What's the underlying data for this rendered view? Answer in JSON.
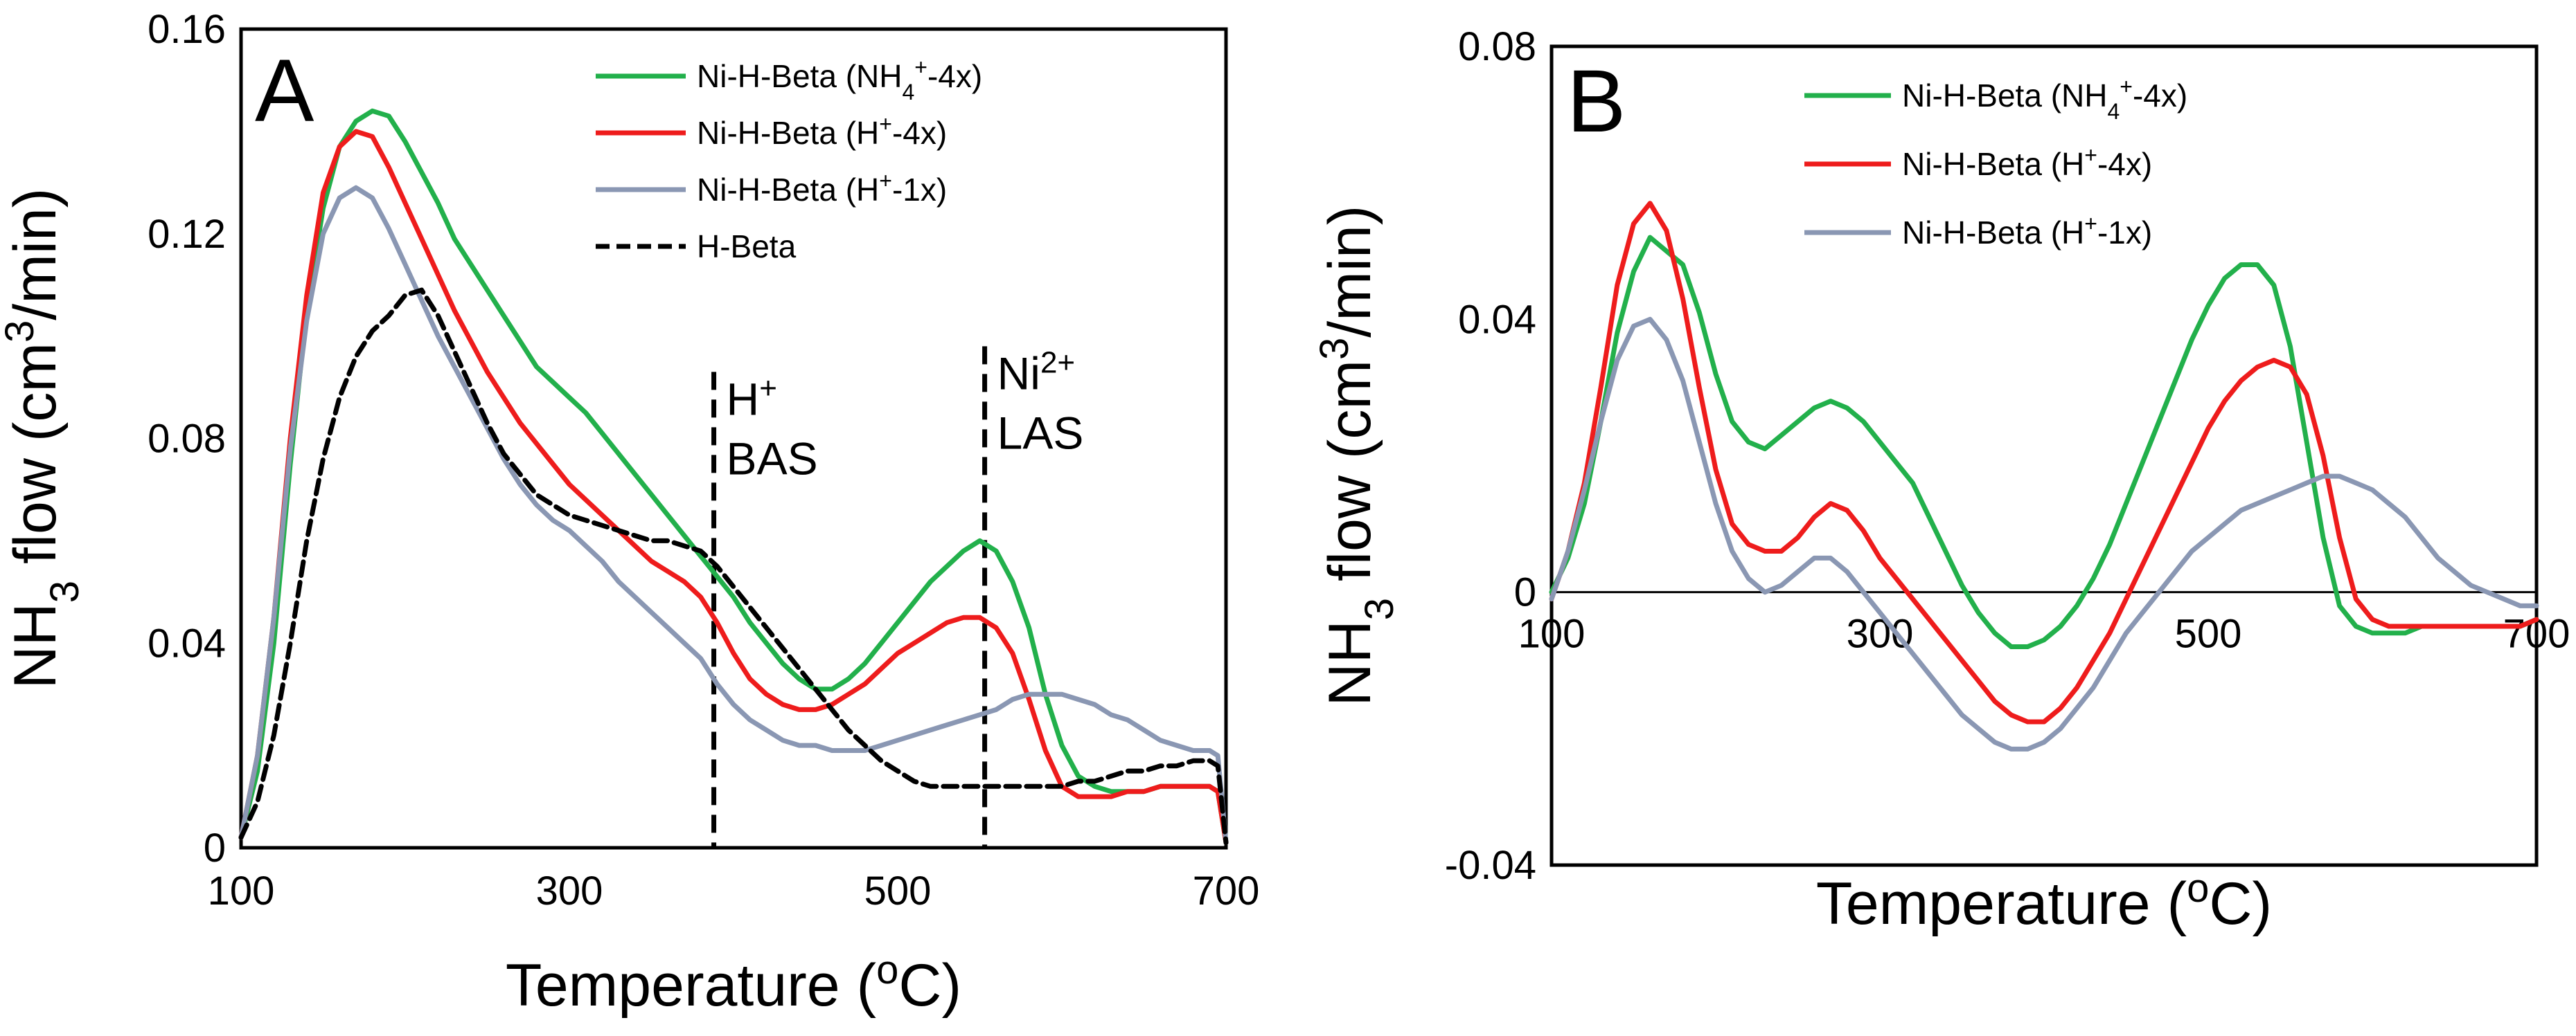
{
  "chart_data": [
    {
      "panel": "A",
      "type": "line",
      "xlabel": "Temperature (oC)",
      "xlabel_main": "Temperature (",
      "xlabel_sup": "o",
      "xlabel_tail": "C)",
      "ylabel": "NH3 flow (cm3/min)",
      "ylabel_parts": [
        "NH",
        "3",
        " flow (cm",
        "3",
        "/min)"
      ],
      "xlim": [
        100,
        700
      ],
      "ylim": [
        0,
        0.16
      ],
      "xticks": [
        "100",
        "300",
        "500",
        "700"
      ],
      "xtick_values": [
        100,
        300,
        500,
        700
      ],
      "yticks": [
        "0",
        "0.04",
        "0.08",
        "0.12",
        "0.16"
      ],
      "ytick_values": [
        0,
        0.04,
        0.08,
        0.12,
        0.16
      ],
      "legend_position": "top-right",
      "grid": false,
      "annotations": [
        {
          "line1": "H",
          "line1_sup": "+",
          "line2": "BAS",
          "x": 388,
          "y_top": 0.093
        },
        {
          "line1": "Ni",
          "line1_sup": "2+",
          "line2": "LAS",
          "x": 553,
          "y_top": 0.098
        }
      ],
      "series": [
        {
          "name": "Ni-H-Beta (NH4+-4x)",
          "label_main": "Ni-H-Beta (NH",
          "label_sub": "4",
          "label_sup": "+",
          "label_tail": "-4x)",
          "color": "#22b04b",
          "dashed": false,
          "x": [
            100,
            110,
            120,
            130,
            140,
            150,
            160,
            170,
            180,
            190,
            200,
            210,
            220,
            230,
            240,
            250,
            260,
            270,
            280,
            290,
            300,
            310,
            320,
            330,
            340,
            350,
            360,
            370,
            380,
            390,
            400,
            410,
            420,
            430,
            440,
            450,
            460,
            470,
            480,
            490,
            500,
            510,
            520,
            530,
            540,
            550,
            560,
            570,
            580,
            590,
            600,
            610,
            620,
            630,
            640,
            650,
            660,
            670,
            680,
            690,
            695,
            700
          ],
          "y": [
            0.002,
            0.015,
            0.04,
            0.075,
            0.105,
            0.125,
            0.137,
            0.142,
            0.144,
            0.143,
            0.138,
            0.132,
            0.126,
            0.119,
            0.114,
            0.109,
            0.104,
            0.099,
            0.094,
            0.091,
            0.088,
            0.085,
            0.081,
            0.077,
            0.073,
            0.069,
            0.065,
            0.061,
            0.057,
            0.053,
            0.049,
            0.044,
            0.04,
            0.036,
            0.033,
            0.031,
            0.031,
            0.033,
            0.036,
            0.04,
            0.044,
            0.048,
            0.052,
            0.055,
            0.058,
            0.06,
            0.058,
            0.052,
            0.043,
            0.03,
            0.02,
            0.014,
            0.012,
            0.011,
            0.011,
            0.011,
            0.012,
            0.012,
            0.012,
            0.012,
            0.011,
            0.001
          ]
        },
        {
          "name": "Ni-H-Beta (H+-4x)",
          "label_main": "Ni-H-Beta (H",
          "label_sub": "",
          "label_sup": "+",
          "label_tail": "-4x)",
          "color": "#ee1c1c",
          "dashed": false,
          "x": [
            100,
            110,
            120,
            130,
            140,
            150,
            160,
            170,
            180,
            190,
            200,
            210,
            220,
            230,
            240,
            250,
            260,
            270,
            280,
            290,
            300,
            310,
            320,
            330,
            340,
            350,
            360,
            370,
            380,
            390,
            400,
            410,
            420,
            430,
            440,
            450,
            460,
            470,
            480,
            490,
            500,
            510,
            520,
            530,
            540,
            550,
            560,
            570,
            580,
            590,
            600,
            610,
            620,
            630,
            640,
            650,
            660,
            670,
            680,
            690,
            695,
            700
          ],
          "y": [
            0.002,
            0.018,
            0.045,
            0.08,
            0.108,
            0.128,
            0.137,
            0.14,
            0.139,
            0.133,
            0.126,
            0.119,
            0.112,
            0.105,
            0.099,
            0.093,
            0.088,
            0.083,
            0.079,
            0.075,
            0.071,
            0.068,
            0.065,
            0.062,
            0.059,
            0.056,
            0.054,
            0.052,
            0.049,
            0.044,
            0.038,
            0.033,
            0.03,
            0.028,
            0.027,
            0.027,
            0.028,
            0.03,
            0.032,
            0.035,
            0.038,
            0.04,
            0.042,
            0.044,
            0.045,
            0.045,
            0.043,
            0.038,
            0.029,
            0.019,
            0.012,
            0.01,
            0.01,
            0.01,
            0.011,
            0.011,
            0.012,
            0.012,
            0.012,
            0.012,
            0.011,
            0.001
          ]
        },
        {
          "name": "Ni-H-Beta (H+-1x)",
          "label_main": "Ni-H-Beta (H",
          "label_sub": "",
          "label_sup": "+",
          "label_tail": "-1x)",
          "color": "#8a97b3",
          "dashed": false,
          "x": [
            100,
            110,
            120,
            130,
            140,
            150,
            160,
            170,
            180,
            190,
            200,
            210,
            220,
            230,
            240,
            250,
            260,
            270,
            280,
            290,
            300,
            310,
            320,
            330,
            340,
            350,
            360,
            370,
            380,
            390,
            400,
            410,
            420,
            430,
            440,
            450,
            460,
            470,
            480,
            490,
            500,
            510,
            520,
            530,
            540,
            550,
            560,
            570,
            580,
            590,
            600,
            610,
            620,
            630,
            640,
            650,
            660,
            670,
            680,
            690,
            695,
            700
          ],
          "y": [
            0.002,
            0.018,
            0.045,
            0.078,
            0.103,
            0.12,
            0.127,
            0.129,
            0.127,
            0.121,
            0.114,
            0.107,
            0.1,
            0.094,
            0.088,
            0.082,
            0.076,
            0.071,
            0.067,
            0.064,
            0.062,
            0.059,
            0.056,
            0.052,
            0.049,
            0.046,
            0.043,
            0.04,
            0.037,
            0.032,
            0.028,
            0.025,
            0.023,
            0.021,
            0.02,
            0.02,
            0.019,
            0.019,
            0.019,
            0.02,
            0.021,
            0.022,
            0.023,
            0.024,
            0.025,
            0.026,
            0.027,
            0.029,
            0.03,
            0.03,
            0.03,
            0.029,
            0.028,
            0.026,
            0.025,
            0.023,
            0.021,
            0.02,
            0.019,
            0.019,
            0.018,
            0.001
          ]
        },
        {
          "name": "H-Beta",
          "label_main": "H-Beta",
          "label_sub": "",
          "label_sup": "",
          "label_tail": "",
          "color": "#000000",
          "dashed": true,
          "x": [
            100,
            110,
            120,
            130,
            140,
            150,
            160,
            170,
            180,
            190,
            200,
            210,
            220,
            230,
            240,
            250,
            260,
            270,
            280,
            290,
            300,
            310,
            320,
            330,
            340,
            350,
            360,
            370,
            380,
            390,
            400,
            410,
            420,
            430,
            440,
            450,
            460,
            470,
            480,
            490,
            500,
            510,
            520,
            530,
            540,
            550,
            560,
            570,
            580,
            590,
            600,
            610,
            620,
            630,
            640,
            650,
            660,
            670,
            680,
            690,
            695,
            700
          ],
          "y": [
            0.002,
            0.009,
            0.022,
            0.04,
            0.06,
            0.076,
            0.088,
            0.096,
            0.101,
            0.104,
            0.108,
            0.109,
            0.104,
            0.097,
            0.09,
            0.083,
            0.077,
            0.073,
            0.069,
            0.067,
            0.065,
            0.064,
            0.063,
            0.062,
            0.061,
            0.06,
            0.06,
            0.059,
            0.058,
            0.055,
            0.051,
            0.047,
            0.043,
            0.039,
            0.035,
            0.031,
            0.027,
            0.023,
            0.02,
            0.017,
            0.015,
            0.013,
            0.012,
            0.012,
            0.012,
            0.012,
            0.012,
            0.012,
            0.012,
            0.012,
            0.012,
            0.013,
            0.013,
            0.014,
            0.015,
            0.015,
            0.016,
            0.016,
            0.017,
            0.017,
            0.016,
            0.001
          ]
        }
      ]
    },
    {
      "panel": "B",
      "type": "line",
      "xlabel": "Temperature (oC)",
      "xlabel_main": "Temperature (",
      "xlabel_sup": "o",
      "xlabel_tail": "C)",
      "ylabel": "NH3 flow (cm3/min)",
      "ylabel_parts": [
        "NH",
        "3",
        " flow (cm",
        "3",
        "/min)"
      ],
      "xlim": [
        100,
        700
      ],
      "ylim": [
        -0.04,
        0.08
      ],
      "xticks": [
        "100",
        "300",
        "500",
        "700"
      ],
      "xtick_values": [
        100,
        300,
        500,
        700
      ],
      "yticks": [
        "-0.04",
        "0",
        "0.04",
        "0.08"
      ],
      "ytick_values": [
        -0.04,
        0,
        0.04,
        0.08
      ],
      "legend_position": "top-right",
      "grid": false,
      "series": [
        {
          "name": "Ni-H-Beta (NH4+-4x)",
          "label_main": "Ni-H-Beta (NH",
          "label_sub": "4",
          "label_sup": "+",
          "label_tail": "-4x)",
          "color": "#22b04b",
          "dashed": false,
          "x": [
            100,
            110,
            120,
            130,
            140,
            150,
            160,
            170,
            180,
            190,
            200,
            210,
            220,
            230,
            240,
            250,
            260,
            270,
            280,
            290,
            300,
            310,
            320,
            330,
            340,
            350,
            360,
            370,
            380,
            390,
            400,
            410,
            420,
            430,
            440,
            450,
            460,
            470,
            480,
            490,
            500,
            510,
            520,
            530,
            540,
            550,
            560,
            570,
            580,
            590,
            600,
            610,
            620,
            630,
            640,
            650,
            660,
            670,
            680,
            690,
            700
          ],
          "y": [
            0.0,
            0.005,
            0.013,
            0.025,
            0.038,
            0.047,
            0.052,
            0.05,
            0.048,
            0.041,
            0.032,
            0.025,
            0.022,
            0.021,
            0.023,
            0.025,
            0.027,
            0.028,
            0.027,
            0.025,
            0.022,
            0.019,
            0.016,
            0.011,
            0.006,
            0.001,
            -0.003,
            -0.006,
            -0.008,
            -0.008,
            -0.007,
            -0.005,
            -0.002,
            0.002,
            0.007,
            0.013,
            0.019,
            0.025,
            0.031,
            0.037,
            0.042,
            0.046,
            0.048,
            0.048,
            0.045,
            0.036,
            0.022,
            0.008,
            -0.002,
            -0.005,
            -0.006,
            -0.006,
            -0.006,
            -0.005,
            -0.005,
            -0.005,
            -0.005,
            -0.005,
            -0.005,
            -0.005,
            -0.004
          ]
        },
        {
          "name": "Ni-H-Beta (H+-4x)",
          "label_main": "Ni-H-Beta (H",
          "label_sub": "",
          "label_sup": "+",
          "label_tail": "-4x)",
          "color": "#ee1c1c",
          "dashed": false,
          "x": [
            100,
            110,
            120,
            130,
            140,
            150,
            160,
            170,
            180,
            190,
            200,
            210,
            220,
            230,
            240,
            250,
            260,
            270,
            280,
            290,
            300,
            310,
            320,
            330,
            340,
            350,
            360,
            370,
            380,
            390,
            400,
            410,
            420,
            430,
            440,
            450,
            460,
            470,
            480,
            490,
            500,
            510,
            520,
            530,
            540,
            550,
            560,
            570,
            580,
            590,
            600,
            610,
            620,
            630,
            640,
            650,
            660,
            670,
            680,
            690,
            700
          ],
          "y": [
            -0.001,
            0.006,
            0.016,
            0.03,
            0.045,
            0.054,
            0.057,
            0.053,
            0.043,
            0.03,
            0.018,
            0.01,
            0.007,
            0.006,
            0.006,
            0.008,
            0.011,
            0.013,
            0.012,
            0.009,
            0.005,
            0.002,
            -0.001,
            -0.004,
            -0.007,
            -0.01,
            -0.013,
            -0.016,
            -0.018,
            -0.019,
            -0.019,
            -0.017,
            -0.014,
            -0.01,
            -0.006,
            -0.001,
            0.004,
            0.009,
            0.014,
            0.019,
            0.024,
            0.028,
            0.031,
            0.033,
            0.034,
            0.033,
            0.029,
            0.02,
            0.008,
            -0.001,
            -0.004,
            -0.005,
            -0.005,
            -0.005,
            -0.005,
            -0.005,
            -0.005,
            -0.005,
            -0.005,
            -0.005,
            -0.004
          ]
        },
        {
          "name": "Ni-H-Beta (H+-1x)",
          "label_main": "Ni-H-Beta (H",
          "label_sub": "",
          "label_sup": "+",
          "label_tail": "-1x)",
          "color": "#8a97b3",
          "dashed": false,
          "x": [
            100,
            110,
            120,
            130,
            140,
            150,
            160,
            170,
            180,
            190,
            200,
            210,
            220,
            230,
            240,
            250,
            260,
            270,
            280,
            290,
            300,
            310,
            320,
            330,
            340,
            350,
            360,
            370,
            380,
            390,
            400,
            410,
            420,
            430,
            440,
            450,
            460,
            470,
            480,
            490,
            500,
            510,
            520,
            530,
            540,
            550,
            560,
            570,
            580,
            590,
            600,
            610,
            620,
            630,
            640,
            650,
            660,
            670,
            680,
            690,
            700
          ],
          "y": [
            -0.001,
            0.006,
            0.015,
            0.025,
            0.034,
            0.039,
            0.04,
            0.037,
            0.031,
            0.022,
            0.013,
            0.006,
            0.002,
            0.0,
            0.001,
            0.003,
            0.005,
            0.005,
            0.003,
            0.0,
            -0.003,
            -0.006,
            -0.009,
            -0.012,
            -0.015,
            -0.018,
            -0.02,
            -0.022,
            -0.023,
            -0.023,
            -0.022,
            -0.02,
            -0.017,
            -0.014,
            -0.01,
            -0.006,
            -0.003,
            0.0,
            0.003,
            0.006,
            0.008,
            0.01,
            0.012,
            0.013,
            0.014,
            0.015,
            0.016,
            0.017,
            0.017,
            0.016,
            0.015,
            0.013,
            0.011,
            0.008,
            0.005,
            0.003,
            0.001,
            0.0,
            -0.001,
            -0.002,
            -0.002
          ]
        }
      ]
    }
  ]
}
